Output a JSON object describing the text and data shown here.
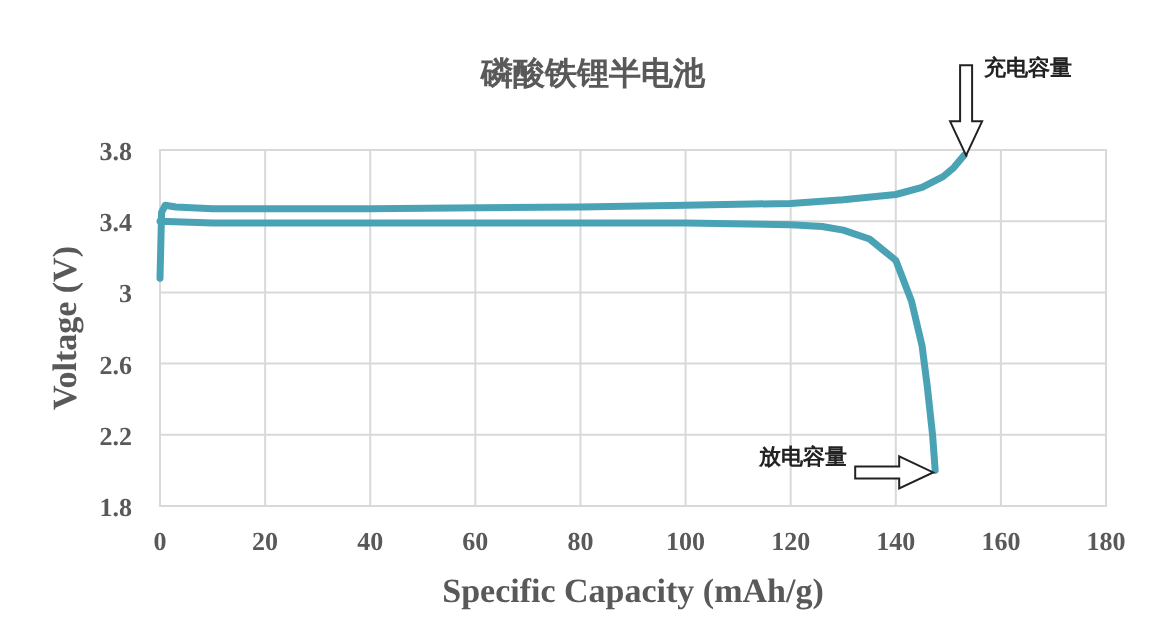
{
  "chart_data": {
    "type": "line",
    "title": "磷酸铁锂半电池",
    "xlabel": "Specific Capacity (mAh/g)",
    "ylabel": "Voltage (V)",
    "xlim": [
      0,
      180
    ],
    "xticks": [
      0,
      20,
      40,
      60,
      80,
      100,
      120,
      140,
      160,
      180
    ],
    "ylim": [
      1.8,
      3.8
    ],
    "yticks": [
      1.8,
      2.2,
      2.6,
      3,
      3.4,
      3.8
    ],
    "grid": true,
    "marker": "none",
    "line_style": "solid",
    "series": [
      {
        "color": "#4aa3b5",
        "x": [
          0,
          0.3,
          1,
          3,
          10,
          40,
          80,
          100,
          120,
          130,
          140,
          145,
          149,
          151,
          153
        ],
        "values": [
          3.08,
          3.45,
          3.49,
          3.48,
          3.47,
          3.47,
          3.48,
          3.49,
          3.5,
          3.52,
          3.55,
          3.59,
          3.65,
          3.7,
          3.77
        ]
      },
      {
        "color": "#4aa3b5",
        "x": [
          0,
          10,
          40,
          80,
          100,
          120,
          126,
          130,
          135,
          140,
          143,
          145,
          146,
          147,
          147.5
        ],
        "values": [
          3.4,
          3.39,
          3.39,
          3.39,
          3.39,
          3.38,
          3.37,
          3.35,
          3.3,
          3.18,
          2.95,
          2.7,
          2.47,
          2.2,
          2.0
        ]
      }
    ],
    "annotations": [
      "充电容量",
      "放电容量"
    ]
  }
}
